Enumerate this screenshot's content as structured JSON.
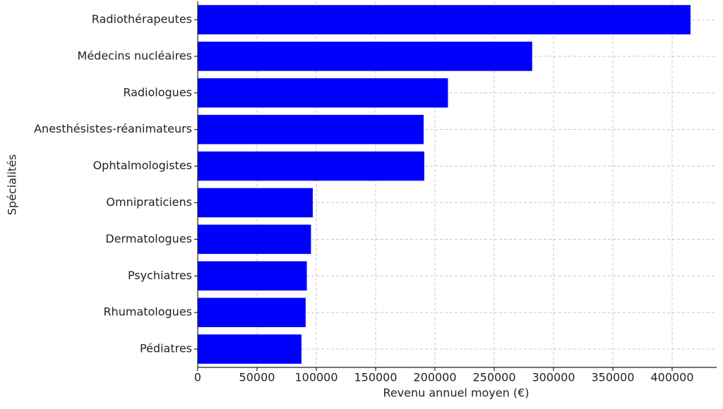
{
  "chart_data": {
    "type": "barh",
    "xlabel": "Revenu annuel moyen (€)",
    "ylabel": "Spécialités",
    "categories": [
      "Radiothérapeutes",
      "Médecins nucléaires",
      "Radiologues",
      "Anesthésistes-réanimateurs",
      "Ophtalmologistes",
      "Omnipraticiens",
      "Dermatologues",
      "Psychiatres",
      "Rhumatologues",
      "Pédiatres"
    ],
    "values": [
      415500,
      282000,
      211000,
      190500,
      191000,
      97000,
      95500,
      92000,
      91000,
      87500
    ],
    "color": "#0000ff",
    "xlim": [
      0,
      437500
    ],
    "xticks": [
      0,
      50000,
      100000,
      150000,
      200000,
      250000,
      300000,
      350000,
      400000
    ],
    "grid": true
  }
}
